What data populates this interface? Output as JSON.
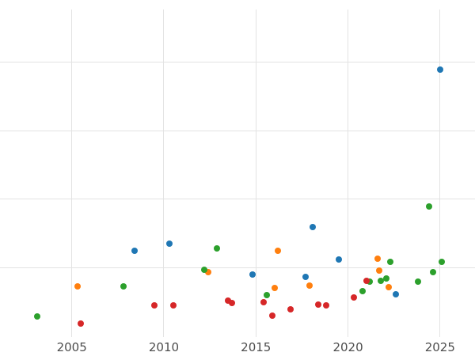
{
  "chart_data": {
    "type": "scatter",
    "title": "",
    "xlabel": "",
    "ylabel": "",
    "xlim": [
      2001.1,
      2026.9
    ],
    "ylim": [
      -0.05,
      4.9
    ],
    "x_ticks": [
      2005,
      2010,
      2015,
      2020,
      2025
    ],
    "y_gridlines": [
      1,
      2,
      3,
      4
    ],
    "grid": true,
    "legend": "none",
    "background": "#ffffff",
    "grid_color": "#e3e3e3",
    "tick_label_color": "#4d4d4d",
    "series": [
      {
        "name": "blue",
        "color": "#1f77b4",
        "points": [
          [
            2008.4,
            1.25
          ],
          [
            2010.3,
            1.36
          ],
          [
            2014.8,
            0.91
          ],
          [
            2017.7,
            0.87
          ],
          [
            2018.1,
            1.6
          ],
          [
            2019.5,
            1.12
          ],
          [
            2022.6,
            0.62
          ],
          [
            2025.0,
            3.89
          ]
        ]
      },
      {
        "name": "orange",
        "color": "#ff7f0e",
        "points": [
          [
            2005.3,
            0.73
          ],
          [
            2012.4,
            0.94
          ],
          [
            2016.0,
            0.71
          ],
          [
            2016.2,
            1.25
          ],
          [
            2017.9,
            0.74
          ],
          [
            2021.6,
            1.14
          ],
          [
            2021.7,
            0.96
          ],
          [
            2022.2,
            0.72
          ]
        ]
      },
      {
        "name": "green",
        "color": "#2ca02c",
        "points": [
          [
            2003.1,
            0.29
          ],
          [
            2007.8,
            0.73
          ],
          [
            2012.2,
            0.97
          ],
          [
            2012.9,
            1.29
          ],
          [
            2015.6,
            0.61
          ],
          [
            2020.8,
            0.66
          ],
          [
            2021.2,
            0.8
          ],
          [
            2021.8,
            0.81
          ],
          [
            2022.1,
            0.85
          ],
          [
            2022.3,
            1.09
          ],
          [
            2023.8,
            0.8
          ],
          [
            2024.4,
            1.9
          ],
          [
            2024.6,
            0.94
          ],
          [
            2025.1,
            1.09
          ]
        ]
      },
      {
        "name": "red",
        "color": "#d62728",
        "points": [
          [
            2005.5,
            0.19
          ],
          [
            2009.5,
            0.46
          ],
          [
            2010.5,
            0.46
          ],
          [
            2013.5,
            0.53
          ],
          [
            2013.7,
            0.49
          ],
          [
            2015.4,
            0.5
          ],
          [
            2015.9,
            0.31
          ],
          [
            2016.9,
            0.4
          ],
          [
            2018.4,
            0.47
          ],
          [
            2018.8,
            0.46
          ],
          [
            2020.3,
            0.57
          ],
          [
            2021.0,
            0.81
          ]
        ]
      }
    ]
  }
}
